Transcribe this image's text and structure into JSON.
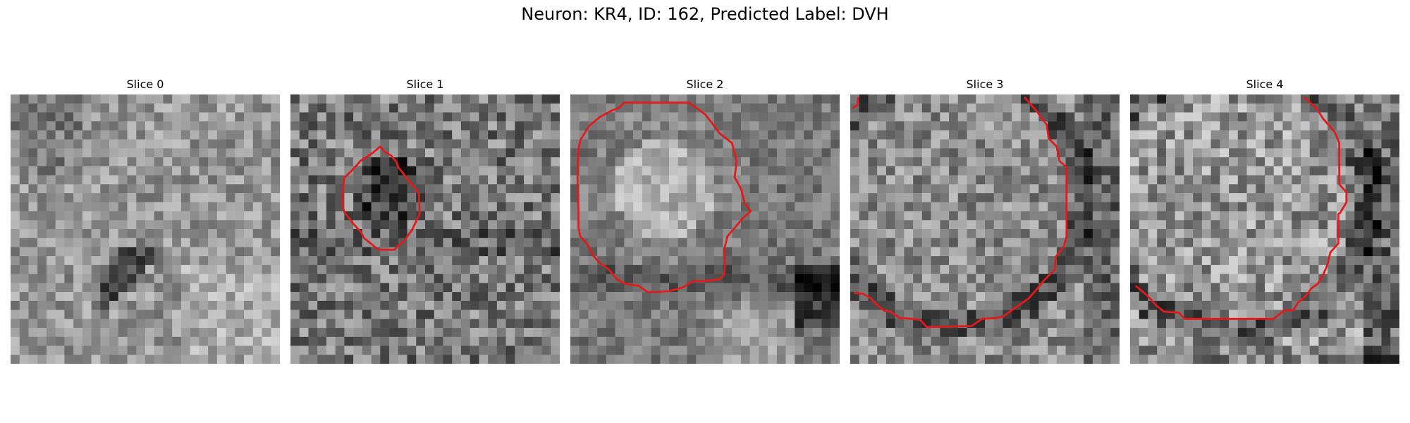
{
  "figure": {
    "title": "Neuron: KR4, ID: 162, Predicted Label: DVH"
  },
  "panels": [
    {
      "title": "Slice 0",
      "has_contour": false
    },
    {
      "title": "Slice 1",
      "has_contour": true
    },
    {
      "title": "Slice 2",
      "has_contour": true
    },
    {
      "title": "Slice 3",
      "has_contour": true
    },
    {
      "title": "Slice 4",
      "has_contour": true
    }
  ],
  "colors": {
    "contour": "#e31a1c",
    "background": "#ffffff"
  },
  "colormap": "gray"
}
